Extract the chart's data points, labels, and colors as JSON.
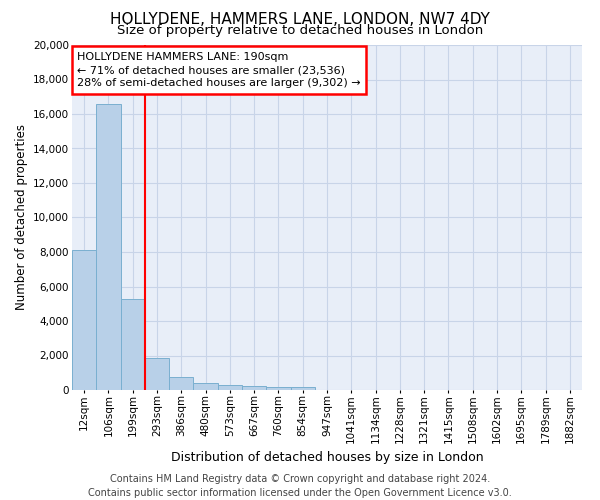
{
  "title": "HOLLYDENE, HAMMERS LANE, LONDON, NW7 4DY",
  "subtitle": "Size of property relative to detached houses in London",
  "xlabel": "Distribution of detached houses by size in London",
  "ylabel": "Number of detached properties",
  "footer_line1": "Contains HM Land Registry data © Crown copyright and database right 2024.",
  "footer_line2": "Contains public sector information licensed under the Open Government Licence v3.0.",
  "categories": [
    "12sqm",
    "106sqm",
    "199sqm",
    "293sqm",
    "386sqm",
    "480sqm",
    "573sqm",
    "667sqm",
    "760sqm",
    "854sqm",
    "947sqm",
    "1041sqm",
    "1134sqm",
    "1228sqm",
    "1321sqm",
    "1415sqm",
    "1508sqm",
    "1602sqm",
    "1695sqm",
    "1789sqm",
    "1882sqm"
  ],
  "values": [
    8100,
    16600,
    5300,
    1850,
    750,
    380,
    290,
    235,
    195,
    160,
    0,
    0,
    0,
    0,
    0,
    0,
    0,
    0,
    0,
    0,
    0
  ],
  "bar_color": "#b8d0e8",
  "bar_edge_color": "#7aafd0",
  "vline_color": "red",
  "vline_x_index": 2,
  "annotation_text": "HOLLYDENE HAMMERS LANE: 190sqm\n← 71% of detached houses are smaller (23,536)\n28% of semi-detached houses are larger (9,302) →",
  "annotation_box_edgecolor": "red",
  "annotation_text_color": "black",
  "annotation_bg_color": "white",
  "ylim": [
    0,
    20000
  ],
  "yticks": [
    0,
    2000,
    4000,
    6000,
    8000,
    10000,
    12000,
    14000,
    16000,
    18000,
    20000
  ],
  "grid_color": "#c8d4e8",
  "bg_color": "#e8eef8",
  "title_fontsize": 11,
  "subtitle_fontsize": 9.5,
  "xlabel_fontsize": 9,
  "ylabel_fontsize": 8.5,
  "tick_fontsize": 7.5,
  "annotation_fontsize": 8,
  "footer_fontsize": 7
}
